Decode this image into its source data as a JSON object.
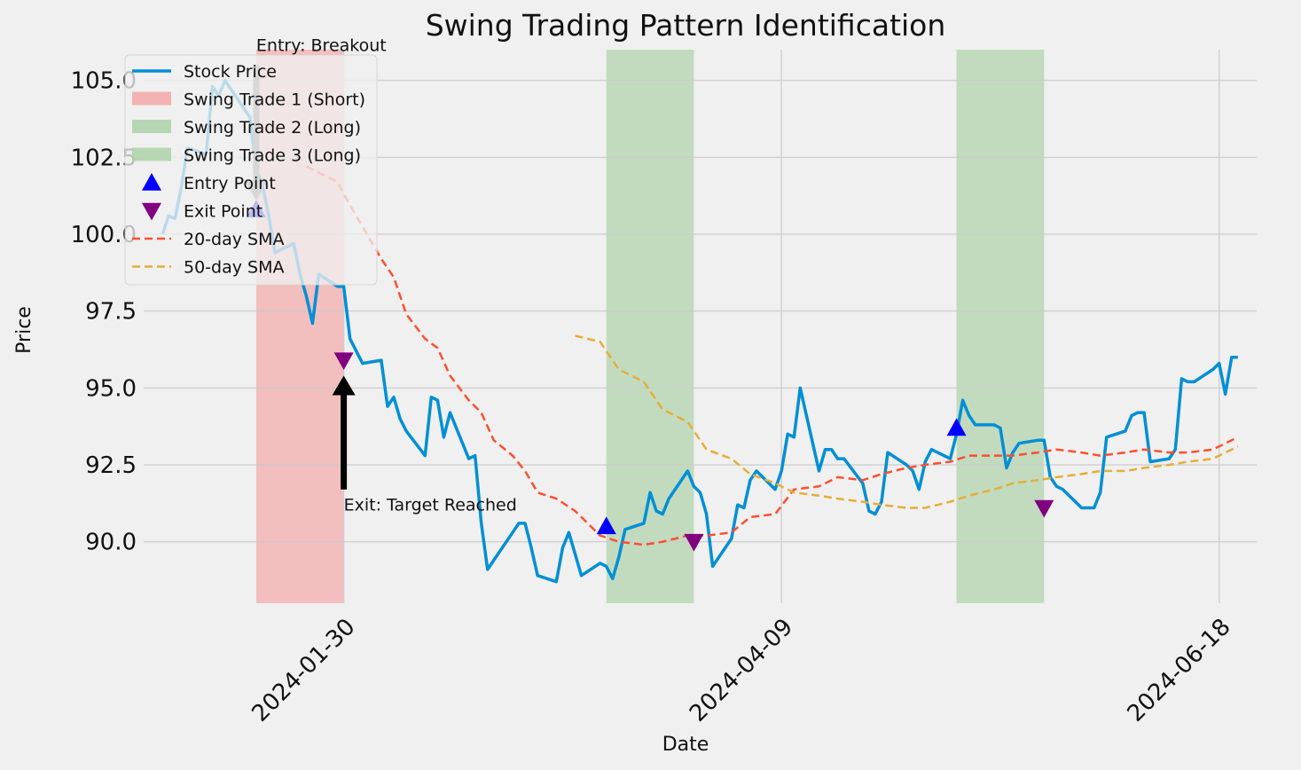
{
  "chart_data": {
    "type": "line",
    "title": "Swing Trading Pattern Identification",
    "xlabel": "Date",
    "ylabel": "Price",
    "x_ticks": [
      "2024-01-30",
      "2024-04-09",
      "2024-06-18"
    ],
    "y_ticks": [
      "90.0",
      "92.5",
      "95.0",
      "97.5",
      "100.0",
      "102.5",
      "105.0"
    ],
    "xlim": [
      "2023-12-29",
      "2024-06-24"
    ],
    "ylim": [
      88.0,
      106.0
    ],
    "grid": true,
    "legend_position": "upper-left",
    "series": [
      {
        "name": "Stock Price",
        "color": "#008fd5",
        "style": "solid",
        "x": [
          "2024-01-01",
          "2024-01-02",
          "2024-01-03",
          "2024-01-04",
          "2024-01-05",
          "2024-01-08",
          "2024-01-09",
          "2024-01-10",
          "2024-01-11",
          "2024-01-12",
          "2024-01-15",
          "2024-01-16",
          "2024-01-17",
          "2024-01-18",
          "2024-01-19",
          "2024-01-22",
          "2024-01-23",
          "2024-01-24",
          "2024-01-25",
          "2024-01-26",
          "2024-01-29",
          "2024-01-30",
          "2024-01-31",
          "2024-02-01",
          "2024-02-02",
          "2024-02-05",
          "2024-02-06",
          "2024-02-07",
          "2024-02-08",
          "2024-02-09",
          "2024-02-12",
          "2024-02-13",
          "2024-02-14",
          "2024-02-15",
          "2024-02-16",
          "2024-02-19",
          "2024-02-20",
          "2024-02-21",
          "2024-02-22",
          "2024-02-23",
          "2024-02-26",
          "2024-02-27",
          "2024-02-28",
          "2024-02-29",
          "2024-03-01",
          "2024-03-04",
          "2024-03-05",
          "2024-03-06",
          "2024-03-07",
          "2024-03-08",
          "2024-03-11",
          "2024-03-12",
          "2024-03-13",
          "2024-03-14",
          "2024-03-15",
          "2024-03-18",
          "2024-03-19",
          "2024-03-20",
          "2024-03-21",
          "2024-03-22",
          "2024-03-25",
          "2024-03-26",
          "2024-03-27",
          "2024-03-28",
          "2024-03-29",
          "2024-04-01",
          "2024-04-02",
          "2024-04-03",
          "2024-04-04",
          "2024-04-05",
          "2024-04-08",
          "2024-04-09",
          "2024-04-10",
          "2024-04-11",
          "2024-04-12",
          "2024-04-15",
          "2024-04-16",
          "2024-04-17",
          "2024-04-18",
          "2024-04-19",
          "2024-04-22",
          "2024-04-23",
          "2024-04-24",
          "2024-04-25",
          "2024-04-26",
          "2024-04-29",
          "2024-04-30",
          "2024-05-01",
          "2024-05-02",
          "2024-05-03",
          "2024-05-06",
          "2024-05-07",
          "2024-05-08",
          "2024-05-09",
          "2024-05-10",
          "2024-05-13",
          "2024-05-14",
          "2024-05-15",
          "2024-05-16",
          "2024-05-17",
          "2024-05-20",
          "2024-05-21",
          "2024-05-22",
          "2024-05-23",
          "2024-05-24",
          "2024-05-27",
          "2024-05-28",
          "2024-05-29",
          "2024-05-30",
          "2024-05-31",
          "2024-06-03",
          "2024-06-04",
          "2024-06-05",
          "2024-06-06",
          "2024-06-07",
          "2024-06-10",
          "2024-06-11",
          "2024-06-12",
          "2024-06-13",
          "2024-06-14",
          "2024-06-17",
          "2024-06-18",
          "2024-06-19",
          "2024-06-20",
          "2024-06-21"
        ],
        "values": [
          100.0,
          100.6,
          100.5,
          101.5,
          102.8,
          102.6,
          104.8,
          104.5,
          105.0,
          104.7,
          103.8,
          102.1,
          101.6,
          100.6,
          99.4,
          99.7,
          98.7,
          98.0,
          97.1,
          98.7,
          98.3,
          98.3,
          96.6,
          96.2,
          95.8,
          95.9,
          94.4,
          94.7,
          94.0,
          93.6,
          92.8,
          94.7,
          94.6,
          93.4,
          94.2,
          92.7,
          92.8,
          90.6,
          89.1,
          89.4,
          90.3,
          90.6,
          90.6,
          89.8,
          88.9,
          88.7,
          89.8,
          90.3,
          89.6,
          88.9,
          89.3,
          89.2,
          88.8,
          89.5,
          90.4,
          90.6,
          91.6,
          91.0,
          90.9,
          91.4,
          92.3,
          91.8,
          91.6,
          90.9,
          89.2,
          90.1,
          91.2,
          91.1,
          92.0,
          92.3,
          91.7,
          92.3,
          93.5,
          93.4,
          95.0,
          92.3,
          93.0,
          93.0,
          92.7,
          92.7,
          91.9,
          91.0,
          90.9,
          91.3,
          92.9,
          92.5,
          92.3,
          91.7,
          92.6,
          93.0,
          92.7,
          93.5,
          94.6,
          94.1,
          93.8,
          93.8,
          93.7,
          92.4,
          92.9,
          93.2,
          93.3,
          93.3,
          92.1,
          91.8,
          91.7,
          91.1,
          91.1,
          91.1,
          91.6,
          93.4,
          93.6,
          94.1,
          94.2,
          94.2,
          92.6,
          92.7,
          93.0,
          95.3,
          95.2,
          95.2,
          95.6,
          95.8,
          94.8,
          96.0,
          96.0
        ],
        "values_note_removed": true
      },
      {
        "name": "20-day SMA",
        "color": "#fc4f30",
        "style": "dashed",
        "x": [
          "2024-01-24",
          "2024-01-26",
          "2024-01-29",
          "2024-01-30",
          "2024-02-01",
          "2024-02-05",
          "2024-02-07",
          "2024-02-09",
          "2024-02-12",
          "2024-02-14",
          "2024-02-16",
          "2024-02-19",
          "2024-02-21",
          "2024-02-23",
          "2024-02-26",
          "2024-02-28",
          "2024-03-01",
          "2024-03-04",
          "2024-03-07",
          "2024-03-11",
          "2024-03-14",
          "2024-03-18",
          "2024-03-21",
          "2024-03-25",
          "2024-03-28",
          "2024-04-01",
          "2024-04-04",
          "2024-04-08",
          "2024-04-11",
          "2024-04-15",
          "2024-04-18",
          "2024-04-22",
          "2024-04-25",
          "2024-04-29",
          "2024-05-02",
          "2024-05-06",
          "2024-05-09",
          "2024-05-13",
          "2024-05-16",
          "2024-05-20",
          "2024-05-23",
          "2024-05-27",
          "2024-05-30",
          "2024-06-03",
          "2024-06-06",
          "2024-06-10",
          "2024-06-13",
          "2024-06-17",
          "2024-06-20",
          "2024-06-21"
        ],
        "values": [
          102.2,
          102.0,
          101.7,
          101.3,
          100.6,
          99.2,
          98.6,
          97.4,
          96.6,
          96.3,
          95.4,
          94.6,
          94.2,
          93.3,
          92.8,
          92.3,
          91.6,
          91.4,
          91.0,
          90.2,
          90.0,
          89.9,
          90.0,
          90.2,
          90.2,
          90.3,
          90.8,
          90.9,
          91.7,
          91.8,
          92.1,
          92.0,
          92.2,
          92.4,
          92.5,
          92.6,
          92.8,
          92.8,
          92.8,
          92.9,
          93.0,
          92.9,
          92.8,
          92.9,
          93.0,
          92.9,
          92.9,
          93.0,
          93.3,
          93.4
        ]
      },
      {
        "name": "50-day SMA",
        "color": "#e5ae38",
        "style": "dashed",
        "x": [
          "2024-03-07",
          "2024-03-11",
          "2024-03-14",
          "2024-03-18",
          "2024-03-21",
          "2024-03-25",
          "2024-03-28",
          "2024-04-01",
          "2024-04-04",
          "2024-04-08",
          "2024-04-11",
          "2024-04-15",
          "2024-04-18",
          "2024-04-22",
          "2024-04-25",
          "2024-04-29",
          "2024-05-02",
          "2024-05-06",
          "2024-05-09",
          "2024-05-13",
          "2024-05-16",
          "2024-05-20",
          "2024-05-23",
          "2024-05-27",
          "2024-05-30",
          "2024-06-03",
          "2024-06-06",
          "2024-06-10",
          "2024-06-13",
          "2024-06-17",
          "2024-06-20",
          "2024-06-21"
        ],
        "values": [
          96.7,
          96.5,
          95.6,
          95.2,
          94.3,
          93.9,
          93.0,
          92.7,
          92.2,
          91.9,
          91.6,
          91.5,
          91.4,
          91.3,
          91.2,
          91.1,
          91.1,
          91.3,
          91.5,
          91.7,
          91.9,
          92.0,
          92.1,
          92.2,
          92.3,
          92.3,
          92.4,
          92.5,
          92.6,
          92.7,
          93.0,
          93.1
        ]
      }
    ],
    "shaded_regions": [
      {
        "name": "Swing Trade 1 (Short)",
        "start": "2024-01-16",
        "end": "2024-01-30",
        "color": "#f5a3a3"
      },
      {
        "name": "Swing Trade 2 (Long)",
        "start": "2024-03-12",
        "end": "2024-03-26",
        "color": "#a9cfa4"
      },
      {
        "name": "Swing Trade 3 (Long)",
        "start": "2024-05-07",
        "end": "2024-05-21",
        "color": "#a9cfa4"
      }
    ],
    "entry_points": {
      "name": "Entry Point",
      "color": "#0000ff",
      "points": [
        {
          "x": "2024-01-16",
          "y": 100.8
        },
        {
          "x": "2024-03-12",
          "y": 90.5
        },
        {
          "x": "2024-05-07",
          "y": 93.7
        }
      ]
    },
    "exit_points": {
      "name": "Exit Point",
      "color": "#800080",
      "points": [
        {
          "x": "2024-01-30",
          "y": 95.9
        },
        {
          "x": "2024-03-26",
          "y": 90.0
        },
        {
          "x": "2024-05-21",
          "y": 91.1
        }
      ]
    },
    "annotations": [
      {
        "text": "Entry: Breakout",
        "target_x": "2024-01-16",
        "target_y": 101.1,
        "text_x": "2024-01-16",
        "text_y": 105.5,
        "arrow_color": "#808080"
      },
      {
        "text": "Exit: Target Reached",
        "target_x": "2024-01-30",
        "target_y": 95.4,
        "text_x": "2024-01-30",
        "text_y": 91.7,
        "arrow_color": "#000000"
      }
    ]
  }
}
